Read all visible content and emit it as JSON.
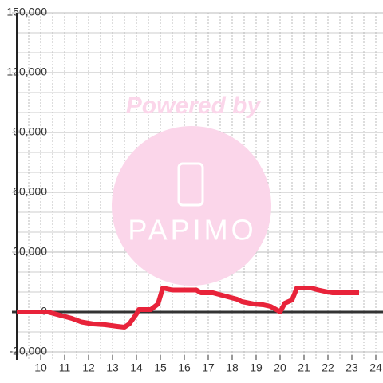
{
  "chart_data": {
    "type": "line",
    "watermark": {
      "title": "Powered by",
      "brand": "PAPIMO"
    },
    "x": [
      9,
      10.3,
      10.8,
      11.3,
      11.7,
      12.2,
      12.7,
      13.2,
      13.5,
      13.7,
      14.0,
      14.1,
      14.6,
      14.9,
      15.1,
      15.5,
      16.0,
      16.5,
      16.7,
      17.2,
      17.7,
      18.2,
      18.4,
      18.9,
      19.3,
      19.6,
      19.9,
      20.0,
      20.2,
      20.5,
      20.7,
      21.3,
      21.6,
      22.0,
      22.2,
      23.3
    ],
    "series": [
      {
        "color": "#e8233a",
        "values": [
          0,
          0,
          -1600,
          -3200,
          -5000,
          -6000,
          -6400,
          -7200,
          -7600,
          -6000,
          -1000,
          1200,
          1200,
          4000,
          12000,
          11000,
          11000,
          11000,
          9600,
          9600,
          8000,
          6400,
          5200,
          4000,
          3600,
          2800,
          800,
          0,
          4400,
          6000,
          12000,
          12000,
          11000,
          10000,
          9600,
          9600
        ]
      }
    ],
    "xlim": [
      9,
      24.3
    ],
    "ylim": [
      -24000,
      150000
    ],
    "xticks": [
      10,
      11,
      12,
      13,
      14,
      15,
      16,
      17,
      18,
      19,
      20,
      21,
      22,
      23,
      24
    ],
    "yticks": [
      {
        "value": -20000,
        "label": "-20,000"
      },
      0,
      {
        "value": 30000,
        "label": "30,000"
      },
      {
        "value": 60000,
        "label": "60,000"
      },
      {
        "value": 90000,
        "label": "90,000"
      },
      {
        "value": 120000,
        "label": "120,000"
      },
      {
        "value": 150000,
        "label": "150,000"
      }
    ],
    "grid": true
  }
}
